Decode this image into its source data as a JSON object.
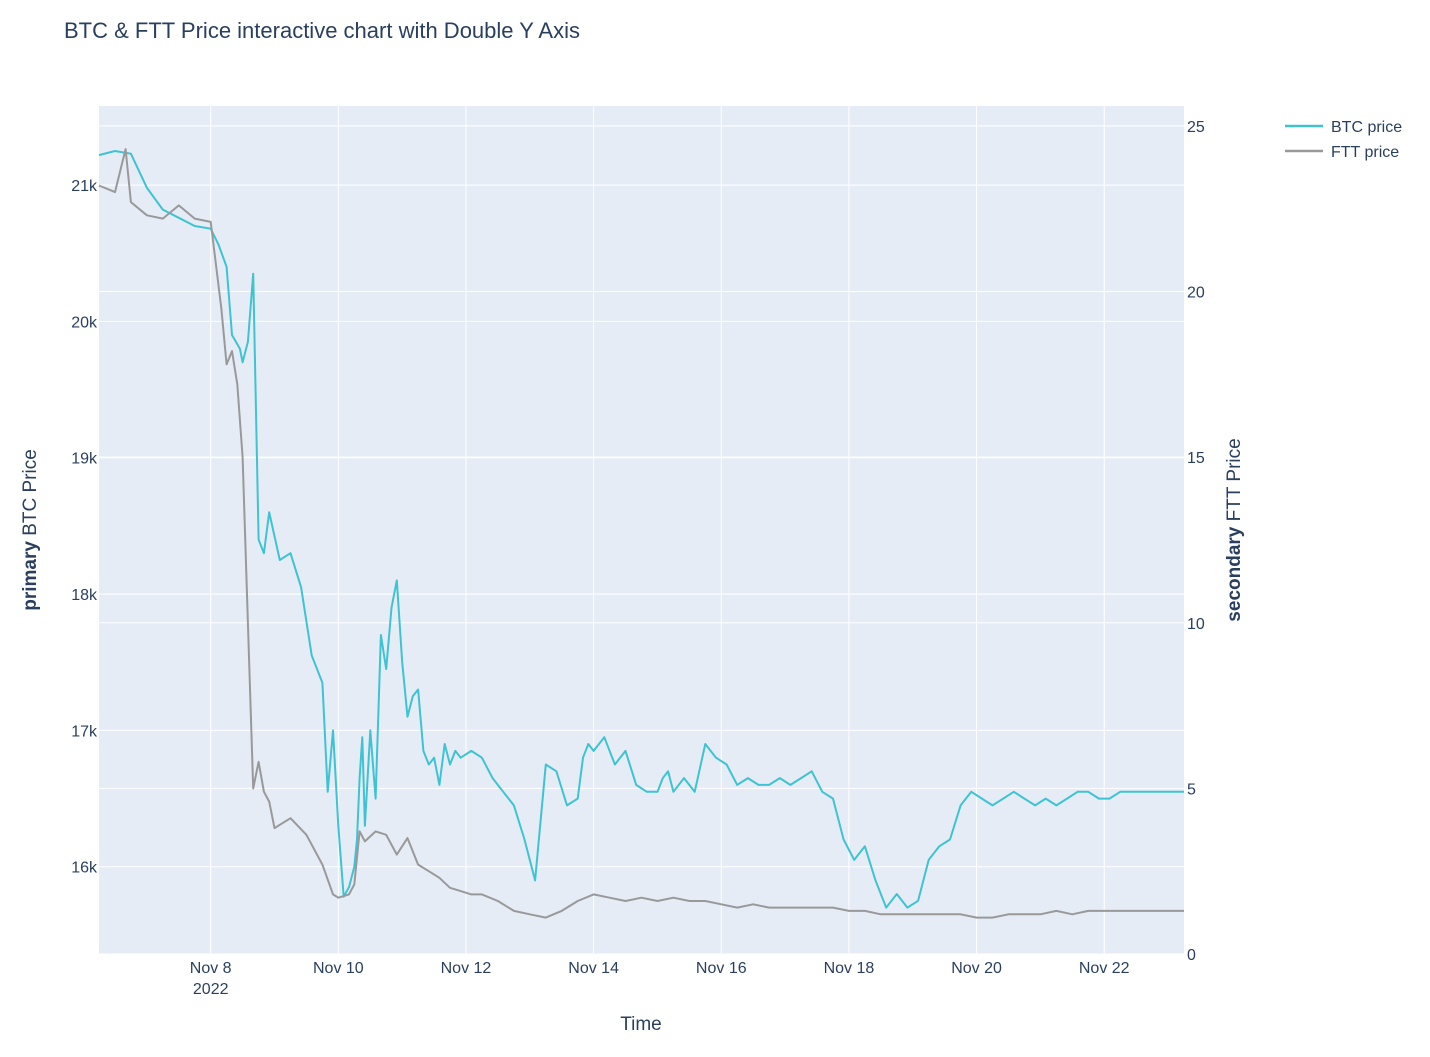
{
  "chart_data": {
    "type": "line",
    "title": "BTC & FTT Price interactive chart with Double Y Axis",
    "xlabel": "Time",
    "ylabel_primary_bold": "primary",
    "ylabel_primary_rest": " BTC Price",
    "ylabel_secondary_bold": "secondary",
    "ylabel_secondary_rest": " FTT Price",
    "x_range_days": [
      "2022-11-06 06:00",
      "2022-11-23 06:00"
    ],
    "x_ticks": [
      {
        "day": "2022-11-08",
        "label": "Nov 8",
        "sublabel": "2022"
      },
      {
        "day": "2022-11-10",
        "label": "Nov 10"
      },
      {
        "day": "2022-11-12",
        "label": "Nov 12"
      },
      {
        "day": "2022-11-14",
        "label": "Nov 14"
      },
      {
        "day": "2022-11-16",
        "label": "Nov 16"
      },
      {
        "day": "2022-11-18",
        "label": "Nov 18"
      },
      {
        "day": "2022-11-20",
        "label": "Nov 20"
      },
      {
        "day": "2022-11-22",
        "label": "Nov 22"
      }
    ],
    "y1_range": [
      15360,
      21580
    ],
    "y1_ticks": [
      {
        "v": 16000,
        "label": "16k"
      },
      {
        "v": 17000,
        "label": "17k"
      },
      {
        "v": 18000,
        "label": "18k"
      },
      {
        "v": 19000,
        "label": "19k"
      },
      {
        "v": 20000,
        "label": "20k"
      },
      {
        "v": 21000,
        "label": "21k"
      }
    ],
    "y2_range": [
      0,
      25.6
    ],
    "y2_ticks": [
      {
        "v": 0,
        "label": "0"
      },
      {
        "v": 5,
        "label": "5"
      },
      {
        "v": 10,
        "label": "10"
      },
      {
        "v": 15,
        "label": "15"
      },
      {
        "v": 20,
        "label": "20"
      },
      {
        "v": 25,
        "label": "25"
      }
    ],
    "grid": true,
    "legend_position": "top-right",
    "series": [
      {
        "name": "BTC price",
        "axis": "y1",
        "color": "#3ec3d3",
        "x_hours_from_start": [
          0,
          6,
          12,
          18,
          24,
          30,
          36,
          42,
          45,
          48,
          50,
          53,
          54,
          56,
          58,
          60,
          62,
          64,
          68,
          72,
          76,
          80,
          84,
          86,
          88,
          90,
          92,
          94,
          96,
          97,
          98,
          99,
          100,
          102,
          104,
          106,
          108,
          110,
          112,
          114,
          116,
          118,
          120,
          122,
          124,
          126,
          128,
          130,
          132,
          134,
          136,
          140,
          144,
          148,
          152,
          156,
          160,
          164,
          168,
          172,
          176,
          180,
          182,
          184,
          186,
          190,
          194,
          198,
          202,
          206,
          210,
          212,
          214,
          216,
          220,
          224,
          228,
          232,
          236,
          240,
          244,
          248,
          252,
          256,
          260,
          264,
          268,
          272,
          276,
          280,
          284,
          288,
          292,
          296,
          300,
          304,
          308,
          312,
          316,
          320,
          324,
          328,
          332,
          336,
          340,
          344,
          348,
          352,
          356,
          360,
          364,
          368,
          372,
          376,
          380,
          384,
          388,
          392,
          396,
          398,
          400,
          402,
          404,
          406,
          408
        ],
        "values": [
          21220,
          21250,
          21230,
          20980,
          20820,
          20760,
          20700,
          20680,
          20560,
          20400,
          19900,
          19800,
          19700,
          19850,
          20350,
          18400,
          18300,
          18600,
          18250,
          18300,
          18050,
          17550,
          17350,
          16550,
          17000,
          16300,
          15780,
          15850,
          16000,
          16200,
          16650,
          16950,
          16300,
          17000,
          16500,
          17700,
          17450,
          17900,
          18100,
          17500,
          17100,
          17250,
          17300,
          16850,
          16750,
          16800,
          16600,
          16900,
          16750,
          16850,
          16800,
          16850,
          16800,
          16650,
          16550,
          16450,
          16200,
          15900,
          16750,
          16700,
          16450,
          16500,
          16800,
          16900,
          16850,
          16950,
          16750,
          16850,
          16600,
          16550,
          16550,
          16650,
          16700,
          16550,
          16650,
          16550,
          16900,
          16800,
          16750,
          16600,
          16650,
          16600,
          16600,
          16650,
          16600,
          16650,
          16700,
          16550,
          16500,
          16200,
          16050,
          16150,
          15900,
          15700,
          15800,
          15700,
          15750,
          16050,
          16150,
          16200,
          16450,
          16550,
          16500,
          16450,
          16500,
          16550,
          16500,
          16450,
          16500,
          16450,
          16500,
          16550,
          16550,
          16500,
          16500,
          16550,
          16550,
          16550,
          16550,
          16550,
          16550,
          16550,
          16550,
          16550,
          16550
        ]
      },
      {
        "name": "FTT price",
        "axis": "y2",
        "color": "#999999",
        "x_hours_from_start": [
          0,
          6,
          10,
          12,
          18,
          24,
          30,
          36,
          42,
          46,
          48,
          50,
          52,
          54,
          58,
          60,
          62,
          64,
          66,
          68,
          72,
          78,
          84,
          88,
          90,
          94,
          96,
          98,
          100,
          104,
          108,
          112,
          116,
          120,
          124,
          128,
          132,
          136,
          140,
          144,
          150,
          156,
          162,
          168,
          174,
          180,
          186,
          192,
          198,
          204,
          210,
          216,
          222,
          228,
          234,
          240,
          246,
          252,
          258,
          264,
          270,
          276,
          282,
          288,
          294,
          300,
          306,
          312,
          318,
          324,
          330,
          336,
          342,
          348,
          354,
          360,
          366,
          372,
          378,
          384,
          390,
          396,
          402,
          408
        ],
        "values": [
          23.2,
          23.0,
          24.3,
          22.7,
          22.3,
          22.2,
          22.6,
          22.2,
          22.1,
          19.5,
          17.8,
          18.2,
          17.2,
          15.0,
          5.0,
          5.8,
          4.9,
          4.6,
          3.8,
          3.9,
          4.1,
          3.6,
          2.7,
          1.8,
          1.7,
          1.8,
          2.1,
          3.7,
          3.4,
          3.7,
          3.6,
          3.0,
          3.5,
          2.7,
          2.5,
          2.3,
          2.0,
          1.9,
          1.8,
          1.8,
          1.6,
          1.3,
          1.2,
          1.1,
          1.3,
          1.6,
          1.8,
          1.7,
          1.6,
          1.7,
          1.6,
          1.7,
          1.6,
          1.6,
          1.5,
          1.4,
          1.5,
          1.4,
          1.4,
          1.4,
          1.4,
          1.4,
          1.3,
          1.3,
          1.2,
          1.2,
          1.2,
          1.2,
          1.2,
          1.2,
          1.1,
          1.1,
          1.2,
          1.2,
          1.2,
          1.3,
          1.2,
          1.3,
          1.3,
          1.3,
          1.3,
          1.3,
          1.3,
          1.3
        ]
      }
    ]
  }
}
